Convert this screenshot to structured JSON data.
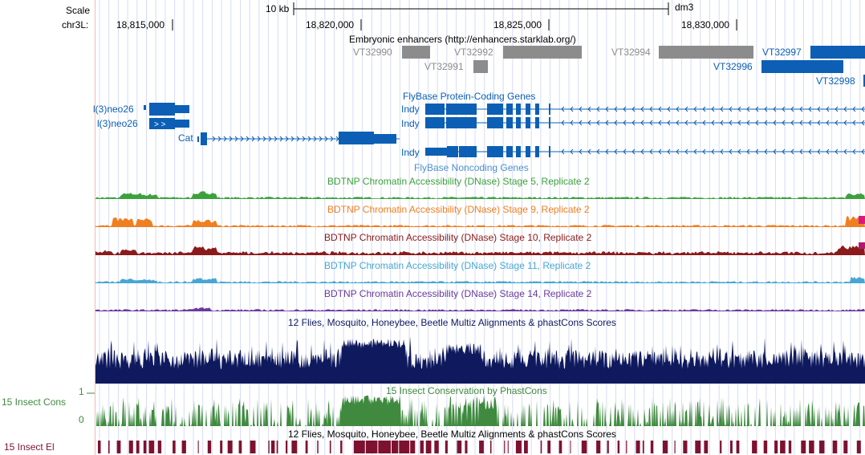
{
  "ruler": {
    "scale_label": "Scale",
    "chrom_label": "chr3L:",
    "scale_bar_label": "10 kb",
    "assembly": "dm3",
    "positions": [
      "18,815,000",
      "18,820,000",
      "18,825,000",
      "18,830,000"
    ]
  },
  "enhancers": {
    "title": "Embryonic enhancers (http://enhancers.starklab.org/)",
    "items": [
      "VT32990",
      "VT32992",
      "VT32991",
      "VT32994",
      "VT32997",
      "VT32996",
      "VT32998"
    ]
  },
  "genes": {
    "protein_title": "FlyBase Protein-Coding Genes",
    "noncoding_title": "FlyBase Noncoding Genes",
    "names": [
      "l(3)neo26",
      "l(3)neo26",
      "Cat",
      "Indy",
      "Indy",
      "Indy"
    ]
  },
  "dnase": {
    "tracks": [
      {
        "label": "BDTNP Chromatin Accessibility (DNase) Stage 5, Replicate 2",
        "color": "#3ca13c"
      },
      {
        "label": "BDTNP Chromatin Accessibility (DNase) Stage 9, Replicate 2",
        "color": "#f07f20"
      },
      {
        "label": "BDTNP Chromatin Accessibility (DNase) Stage 10, Replicate 2",
        "color": "#8b1a1a"
      },
      {
        "label": "BDTNP Chromatin Accessibility (DNase) Stage 11, Replicate 2",
        "color": "#46a7d4"
      },
      {
        "label": "BDTNP Chromatin Accessibility (DNase) Stage 14, Replicate 2",
        "color": "#6a3a9c"
      }
    ]
  },
  "conservation": {
    "multiz_title": "12 Flies, Mosquito, Honeybee, Beetle Multiz Alignments & phastCons Scores",
    "phastcons_title": "15 Insect Conservation by PhastCons",
    "side_label": "15 Insect Cons",
    "axis_max": "1",
    "axis_min": "0",
    "multiz_title2": "12 Flies, Mosquito, Honeybee, Beetle Multiz Alignments & phastCons Scores",
    "elements_side_label": "15 Insect El"
  },
  "colors": {
    "gene_blue": "#0c5fb4",
    "enhancer_gray": "#8c8c8c",
    "multiz_navy": "#0f1a5e",
    "phastcons_green": "#3f8a3f",
    "elements_maroon": "#7d1230",
    "grid_blue": "#d6dcf5",
    "left_red_line": "#f4b8b8"
  }
}
